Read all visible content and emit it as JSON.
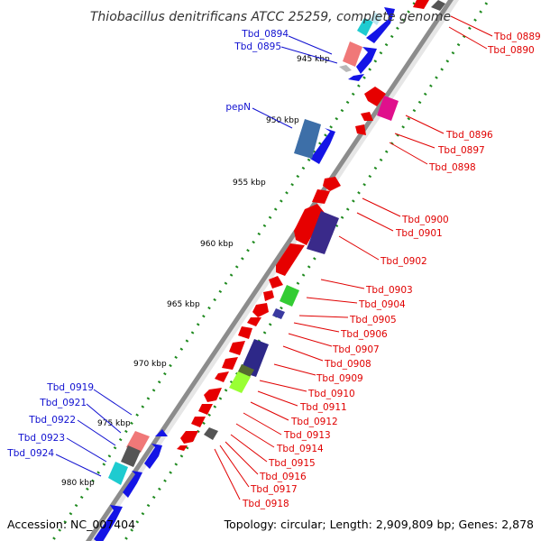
{
  "title": "Thiobacillus denitrificans ATCC 25259, complete genome",
  "accession": "Accession: NC_007404",
  "topology": "Topology: circular; Length: 2,909,809 bp; Genes: 2,878",
  "colors": {
    "forward_label": "#1010d0",
    "reverse_label": "#e00000",
    "backbone": "#8c8c8c",
    "tick": "#1f8a1f",
    "forward_gene": "#1414e6",
    "reverse_gene": "#e60000"
  },
  "ruler_labels": [
    "945 kbp",
    "950 kbp",
    "955 kbp",
    "960 kbp",
    "965 kbp",
    "970 kbp",
    "975 kbp",
    "980 kbp"
  ],
  "forward_genes": [
    "Tbd_0894",
    "Tbd_0895",
    "pepN",
    "Tbd_0919",
    "Tbd_0921",
    "Tbd_0922",
    "Tbd_0923",
    "Tbd_0924"
  ],
  "reverse_genes": [
    "Tbd_0889",
    "Tbd_0890",
    "Tbd_0896",
    "Tbd_0897",
    "Tbd_0898",
    "Tbd_0900",
    "Tbd_0901",
    "Tbd_0902",
    "Tbd_0903",
    "Tbd_0904",
    "Tbd_0905",
    "Tbd_0906",
    "Tbd_0907",
    "Tbd_0908",
    "Tbd_0909",
    "Tbd_0910",
    "Tbd_0911",
    "Tbd_0912",
    "Tbd_0913",
    "Tbd_0914",
    "Tbd_0915",
    "Tbd_0916",
    "Tbd_0917",
    "Tbd_0918"
  ]
}
